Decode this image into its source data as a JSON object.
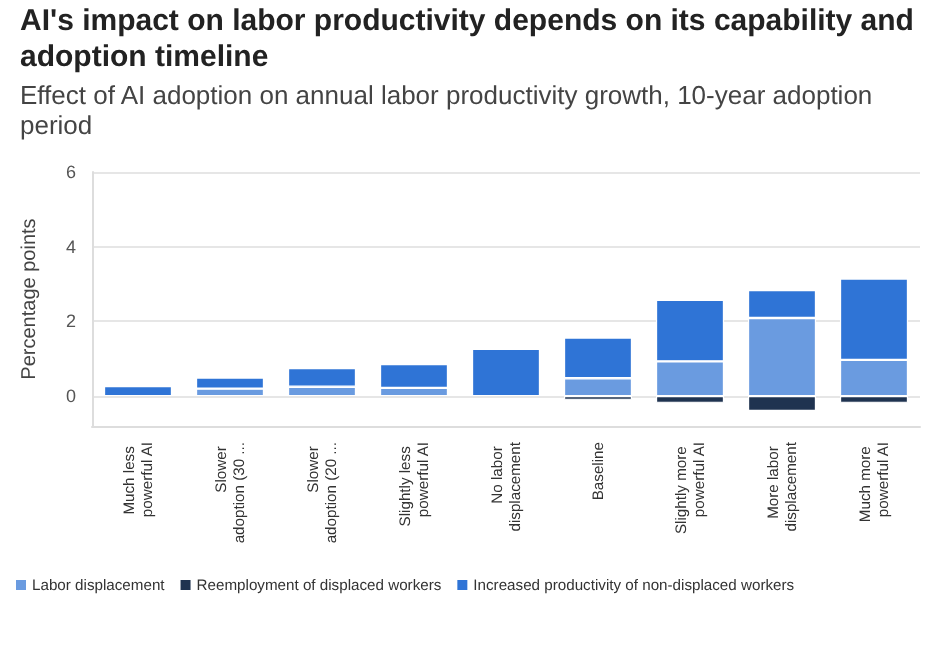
{
  "chart_data": {
    "type": "bar",
    "stacked": true,
    "title": "AI's impact on labor productivity depends on its capability and adoption timeline",
    "subtitle": "Effect of AI adoption on annual labor productivity growth, 10-year adoption period",
    "ylabel": "Percentage points",
    "categories": [
      "Much less powerful AI",
      "Slower adoption (30 ...",
      "Slower adoption (20 ...",
      "Slightly less powerful AI",
      "No labor displacement",
      "Baseline",
      "Slightly more powerful AI",
      "More labor displacement",
      "Much more powerful AI"
    ],
    "series": [
      {
        "name": "Labor displacement",
        "color": "#6a9be0",
        "values": [
          0,
          0.2,
          0.25,
          0.22,
          0,
          0.48,
          0.93,
          2.09,
          0.97
        ]
      },
      {
        "name": "Reemployment of displaced workers",
        "color": "#1f3350",
        "values": [
          0,
          null,
          null,
          null,
          0,
          -0.1,
          -0.18,
          -0.4,
          -0.18
        ]
      },
      {
        "name": "Increased productivity of non-displaced workers",
        "color": "#2f74d6",
        "values": [
          0.27,
          0.3,
          0.5,
          0.64,
          1.27,
          1.09,
          1.65,
          0.75,
          2.18
        ]
      }
    ],
    "ylim": [
      -0.8,
      6
    ],
    "yticks": [
      0,
      2,
      4,
      6
    ],
    "grid": "y",
    "legend": "bottom"
  }
}
